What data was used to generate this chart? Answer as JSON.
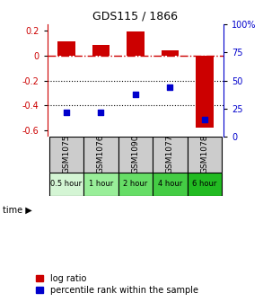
{
  "title": "GDS115 / 1866",
  "samples": [
    "GSM1075",
    "GSM1076",
    "GSM1090",
    "GSM1077",
    "GSM1078"
  ],
  "time_labels": [
    "0.5 hour",
    "1 hour",
    "2 hour",
    "4 hour",
    "6 hour"
  ],
  "time_colors": [
    "#d4f5d4",
    "#99ee99",
    "#66dd66",
    "#44cc44",
    "#22bb22"
  ],
  "log_ratios": [
    0.11,
    0.085,
    0.195,
    0.04,
    -0.58
  ],
  "percentile_ranks": [
    22,
    22,
    38,
    44,
    15
  ],
  "bar_color": "#cc0000",
  "dot_color": "#0000cc",
  "ylim_left": [
    -0.65,
    0.25
  ],
  "ylim_right": [
    0,
    100
  ],
  "hline_zero_color": "#cc0000",
  "hline_dotted_color": "#000000",
  "bg_color": "#ffffff",
  "sample_bg": "#cccccc",
  "legend_bar_label": "log ratio",
  "legend_dot_label": "percentile rank within the sample"
}
